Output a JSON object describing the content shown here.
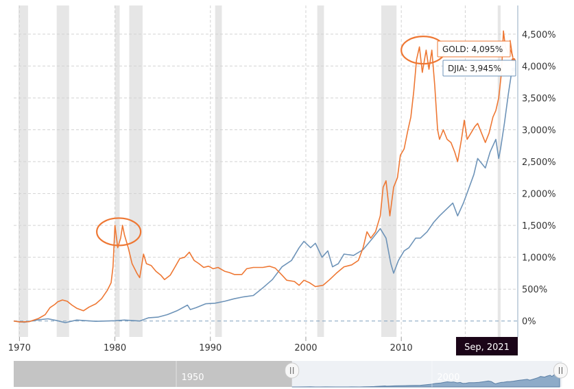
{
  "chart_data": {
    "type": "line",
    "xlim": [
      1969.4,
      2022.2
    ],
    "ylim": [
      -250,
      4950
    ],
    "y_ticks": [
      {
        "value": 0,
        "label": "0%"
      },
      {
        "value": 500,
        "label": "500%"
      },
      {
        "value": 1000,
        "label": "1,000%"
      },
      {
        "value": 1500,
        "label": "1,500%"
      },
      {
        "value": 2000,
        "label": "2,000%"
      },
      {
        "value": 2500,
        "label": "2,500%"
      },
      {
        "value": 3000,
        "label": "3,000%"
      },
      {
        "value": 3500,
        "label": "3,500%"
      },
      {
        "value": 4000,
        "label": "4,000%"
      },
      {
        "value": 4500,
        "label": "4,500%"
      }
    ],
    "x_ticks": [
      {
        "value": 1970,
        "label": "1970"
      },
      {
        "value": 1980,
        "label": "1980"
      },
      {
        "value": 1990,
        "label": "1990"
      },
      {
        "value": 2000,
        "label": "2000"
      },
      {
        "value": 2010,
        "label": "2010"
      }
    ],
    "recessions": [
      [
        1969.9,
        1970.9
      ],
      [
        1973.9,
        1975.2
      ],
      [
        1980.0,
        1980.5
      ],
      [
        1981.5,
        1982.9
      ],
      [
        1990.5,
        1991.2
      ],
      [
        2001.2,
        2001.9
      ],
      [
        2007.9,
        2009.5
      ],
      [
        2020.1,
        2020.4
      ]
    ],
    "series": [
      {
        "name": "GOLD",
        "color": "#ee7733",
        "points": [
          [
            1969.4,
            0
          ],
          [
            1970.0,
            -15
          ],
          [
            1971.0,
            -10
          ],
          [
            1972.0,
            40
          ],
          [
            1972.7,
            100
          ],
          [
            1973.2,
            210
          ],
          [
            1973.7,
            260
          ],
          [
            1974.0,
            300
          ],
          [
            1974.5,
            330
          ],
          [
            1975.0,
            310
          ],
          [
            1975.5,
            250
          ],
          [
            1976.0,
            200
          ],
          [
            1976.7,
            160
          ],
          [
            1977.3,
            220
          ],
          [
            1978.0,
            270
          ],
          [
            1978.6,
            350
          ],
          [
            1979.2,
            480
          ],
          [
            1979.6,
            600
          ],
          [
            1979.8,
            850
          ],
          [
            1980.0,
            1500
          ],
          [
            1980.3,
            1150
          ],
          [
            1980.6,
            1300
          ],
          [
            1980.8,
            1500
          ],
          [
            1981.0,
            1350
          ],
          [
            1981.4,
            1150
          ],
          [
            1981.8,
            900
          ],
          [
            1982.3,
            750
          ],
          [
            1982.6,
            680
          ],
          [
            1983.0,
            1050
          ],
          [
            1983.3,
            900
          ],
          [
            1983.8,
            870
          ],
          [
            1984.3,
            780
          ],
          [
            1984.8,
            720
          ],
          [
            1985.2,
            650
          ],
          [
            1985.8,
            720
          ],
          [
            1986.3,
            850
          ],
          [
            1986.8,
            980
          ],
          [
            1987.3,
            1000
          ],
          [
            1987.8,
            1080
          ],
          [
            1988.3,
            950
          ],
          [
            1988.8,
            900
          ],
          [
            1989.3,
            840
          ],
          [
            1989.8,
            860
          ],
          [
            1990.3,
            820
          ],
          [
            1990.8,
            840
          ],
          [
            1991.5,
            780
          ],
          [
            1992.0,
            760
          ],
          [
            1992.5,
            730
          ],
          [
            1993.3,
            730
          ],
          [
            1993.8,
            820
          ],
          [
            1994.5,
            840
          ],
          [
            1995.5,
            840
          ],
          [
            1996.2,
            860
          ],
          [
            1996.8,
            830
          ],
          [
            1997.5,
            720
          ],
          [
            1998.0,
            640
          ],
          [
            1998.8,
            620
          ],
          [
            1999.3,
            560
          ],
          [
            1999.8,
            640
          ],
          [
            2000.4,
            600
          ],
          [
            2001.0,
            540
          ],
          [
            2001.8,
            560
          ],
          [
            2002.5,
            650
          ],
          [
            2003.2,
            750
          ],
          [
            2004.0,
            850
          ],
          [
            2004.8,
            880
          ],
          [
            2005.5,
            950
          ],
          [
            2006.0,
            1150
          ],
          [
            2006.4,
            1400
          ],
          [
            2006.8,
            1300
          ],
          [
            2007.3,
            1400
          ],
          [
            2007.8,
            1650
          ],
          [
            2008.1,
            2100
          ],
          [
            2008.4,
            2200
          ],
          [
            2008.8,
            1650
          ],
          [
            2009.2,
            2100
          ],
          [
            2009.6,
            2250
          ],
          [
            2009.9,
            2600
          ],
          [
            2010.3,
            2700
          ],
          [
            2010.7,
            3000
          ],
          [
            2011.0,
            3200
          ],
          [
            2011.3,
            3600
          ],
          [
            2011.6,
            4100
          ],
          [
            2011.9,
            4300
          ],
          [
            2012.2,
            3900
          ],
          [
            2012.6,
            4250
          ],
          [
            2012.9,
            3950
          ],
          [
            2013.2,
            4250
          ],
          [
            2013.5,
            3700
          ],
          [
            2013.8,
            3000
          ],
          [
            2014.0,
            2850
          ],
          [
            2014.4,
            3000
          ],
          [
            2014.8,
            2850
          ],
          [
            2015.2,
            2800
          ],
          [
            2015.6,
            2650
          ],
          [
            2015.9,
            2500
          ],
          [
            2016.3,
            2850
          ],
          [
            2016.6,
            3150
          ],
          [
            2016.9,
            2850
          ],
          [
            2017.3,
            2950
          ],
          [
            2017.7,
            3050
          ],
          [
            2018.0,
            3100
          ],
          [
            2018.4,
            2950
          ],
          [
            2018.8,
            2800
          ],
          [
            2019.2,
            2950
          ],
          [
            2019.6,
            3200
          ],
          [
            2019.9,
            3300
          ],
          [
            2020.2,
            3500
          ],
          [
            2020.5,
            3900
          ],
          [
            2020.7,
            4550
          ],
          [
            2020.9,
            4300
          ],
          [
            2021.2,
            4200
          ],
          [
            2021.4,
            4400
          ],
          [
            2021.6,
            4200
          ],
          [
            2021.75,
            4095
          ]
        ]
      },
      {
        "name": "DJIA",
        "color": "#6d93b8",
        "points": [
          [
            1969.4,
            0
          ],
          [
            1970.5,
            -20
          ],
          [
            1972.0,
            20
          ],
          [
            1973.0,
            35
          ],
          [
            1974.0,
            5
          ],
          [
            1974.8,
            -25
          ],
          [
            1976.0,
            15
          ],
          [
            1978.0,
            -5
          ],
          [
            1980.0,
            5
          ],
          [
            1981.0,
            15
          ],
          [
            1982.6,
            0
          ],
          [
            1983.5,
            50
          ],
          [
            1984.5,
            60
          ],
          [
            1985.5,
            100
          ],
          [
            1986.5,
            160
          ],
          [
            1987.6,
            250
          ],
          [
            1987.9,
            180
          ],
          [
            1988.5,
            210
          ],
          [
            1989.5,
            270
          ],
          [
            1990.5,
            280
          ],
          [
            1991.5,
            310
          ],
          [
            1992.5,
            350
          ],
          [
            1993.5,
            380
          ],
          [
            1994.5,
            400
          ],
          [
            1995.5,
            520
          ],
          [
            1996.5,
            650
          ],
          [
            1997.5,
            850
          ],
          [
            1998.5,
            950
          ],
          [
            1999.3,
            1150
          ],
          [
            1999.8,
            1250
          ],
          [
            2000.5,
            1150
          ],
          [
            2001.0,
            1220
          ],
          [
            2001.7,
            1000
          ],
          [
            2002.3,
            1100
          ],
          [
            2002.8,
            850
          ],
          [
            2003.4,
            900
          ],
          [
            2004.0,
            1050
          ],
          [
            2005.0,
            1030
          ],
          [
            2006.0,
            1120
          ],
          [
            2007.0,
            1300
          ],
          [
            2007.8,
            1450
          ],
          [
            2008.4,
            1300
          ],
          [
            2008.9,
            900
          ],
          [
            2009.2,
            750
          ],
          [
            2009.7,
            950
          ],
          [
            2010.3,
            1100
          ],
          [
            2010.8,
            1150
          ],
          [
            2011.5,
            1300
          ],
          [
            2012.0,
            1300
          ],
          [
            2012.7,
            1400
          ],
          [
            2013.4,
            1550
          ],
          [
            2014.0,
            1650
          ],
          [
            2014.7,
            1750
          ],
          [
            2015.4,
            1850
          ],
          [
            2015.9,
            1650
          ],
          [
            2016.5,
            1850
          ],
          [
            2017.0,
            2050
          ],
          [
            2017.6,
            2300
          ],
          [
            2018.0,
            2550
          ],
          [
            2018.8,
            2400
          ],
          [
            2019.3,
            2650
          ],
          [
            2019.9,
            2850
          ],
          [
            2020.2,
            2550
          ],
          [
            2020.4,
            2700
          ],
          [
            2020.8,
            3100
          ],
          [
            2021.2,
            3550
          ],
          [
            2021.5,
            3850
          ],
          [
            2021.75,
            3945
          ]
        ]
      }
    ],
    "callouts": [
      {
        "series": "GOLD",
        "label": "GOLD: 4,095%",
        "value": 4095,
        "color": "#ee7733"
      },
      {
        "series": "DJIA",
        "label": "DJIA: 3,945%",
        "value": 3945,
        "color": "#6d93b8"
      }
    ],
    "highlights": [
      {
        "x": 1980.4,
        "y": 1400
      },
      {
        "x": 2012.3,
        "y": 4250
      }
    ],
    "current_date_label": "Sep, 2021",
    "navigator": {
      "labels": [
        {
          "value": 1950,
          "label": "1950"
        },
        {
          "value": 2000,
          "label": "2000"
        }
      ],
      "handle_icon": "grip-lines-icon"
    }
  }
}
